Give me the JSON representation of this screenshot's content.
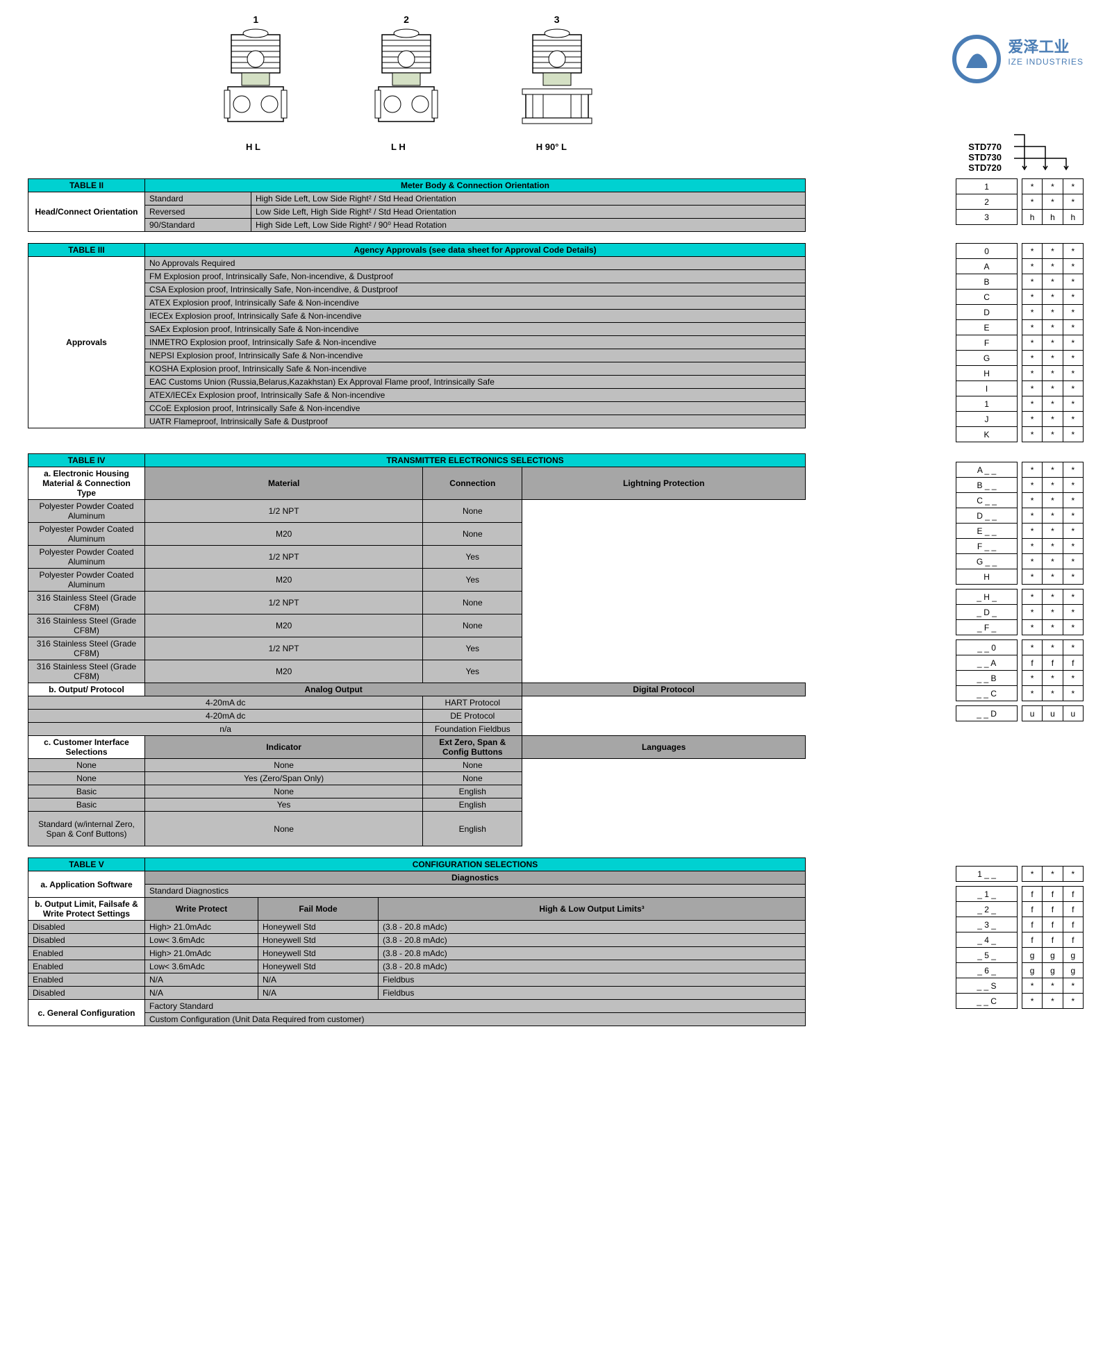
{
  "colors": {
    "cyan": "#00d1d1",
    "grey_sub": "#a6a6a6",
    "grey_data": "#bfbfbf",
    "logo_blue": "#4a7db5"
  },
  "logo": {
    "cn": "爱泽工业",
    "en": "IZE INDUSTRIES"
  },
  "diagram": {
    "nums": [
      "1",
      "2",
      "3"
    ],
    "hl": [
      "H       L",
      "L       H",
      "H  90°  L"
    ]
  },
  "models": [
    "STD770",
    "STD730",
    "STD720"
  ],
  "table2": {
    "title": "TABLE II",
    "header": "Meter Body & Connection Orientation",
    "rowhead": "Head/Connect Orientation",
    "rows": [
      {
        "c1": "Standard",
        "c2": "High Side Left, Low Side Right² / Std Head Orientation",
        "code": "1",
        "marks": [
          "*",
          "*",
          "*"
        ]
      },
      {
        "c1": "Reversed",
        "c2": "Low Side Left, High Side Right² / Std Head Orientation",
        "code": "2",
        "marks": [
          "*",
          "*",
          "*"
        ]
      },
      {
        "c1": "90/Standard",
        "c2": "High Side Left, Low Side Right² / 90⁰ Head Rotation",
        "code": "3",
        "marks": [
          "h",
          "h",
          "h"
        ]
      }
    ]
  },
  "table3": {
    "title": "TABLE III",
    "header": "Agency Approvals (see data sheet for Approval Code Details)",
    "rowhead": "Approvals",
    "rows": [
      {
        "d": "No Approvals Required",
        "code": "0",
        "marks": [
          "*",
          "*",
          "*"
        ]
      },
      {
        "d": "FM Explosion proof, Intrinsically Safe, Non-incendive, & Dustproof",
        "code": "A",
        "marks": [
          "*",
          "*",
          "*"
        ]
      },
      {
        "d": "CSA Explosion proof, Intrinsically Safe, Non-incendive, & Dustproof",
        "code": "B",
        "marks": [
          "*",
          "*",
          "*"
        ]
      },
      {
        "d": "ATEX Explosion proof, Intrinsically Safe & Non-incendive",
        "code": "C",
        "marks": [
          "*",
          "*",
          "*"
        ]
      },
      {
        "d": "IECEx Explosion proof, Intrinsically Safe & Non-incendive",
        "code": "D",
        "marks": [
          "*",
          "*",
          "*"
        ]
      },
      {
        "d": "SAEx Explosion proof, Intrinsically Safe & Non-incendive",
        "code": "E",
        "marks": [
          "*",
          "*",
          "*"
        ]
      },
      {
        "d": "INMETRO Explosion proof, Intrinsically Safe & Non-incendive",
        "code": "F",
        "marks": [
          "*",
          "*",
          "*"
        ]
      },
      {
        "d": "NEPSI Explosion proof, Intrinsically Safe & Non-incendive",
        "code": "G",
        "marks": [
          "*",
          "*",
          "*"
        ]
      },
      {
        "d": "KOSHA Explosion proof, Intrinsically Safe & Non-incendive",
        "code": "H",
        "marks": [
          "*",
          "*",
          "*"
        ]
      },
      {
        "d": "EAC Customs Union (Russia,Belarus,Kazakhstan) Ex Approval Flame proof, Intrinsically Safe",
        "code": "I",
        "marks": [
          "*",
          "*",
          "*"
        ]
      },
      {
        "d": "ATEX/IECEx Explosion proof, Intrinsically Safe & Non-incendive",
        "code": "1",
        "marks": [
          "*",
          "*",
          "*"
        ]
      },
      {
        "d": "CCoE  Explosion proof, Intrinsically Safe & Non-incendive",
        "code": "J",
        "marks": [
          "*",
          "*",
          "*"
        ]
      },
      {
        "d": "UATR Flameproof, Intrinsically Safe & Dustproof",
        "code": "K",
        "marks": [
          "*",
          "*",
          "*"
        ]
      }
    ]
  },
  "table4": {
    "title": "TABLE IV",
    "header": "TRANSMITTER ELECTRONICS SELECTIONS",
    "a": {
      "rowhead": "a. Electronic Housing Material & Connection Type",
      "sub": [
        "Material",
        "Connection",
        "Lightning Protection"
      ],
      "rows": [
        {
          "m": "Polyester Powder Coated Aluminum",
          "c": "1/2 NPT",
          "l": "None",
          "code": "A _ _",
          "marks": [
            "*",
            "*",
            "*"
          ]
        },
        {
          "m": "Polyester Powder Coated Aluminum",
          "c": "M20",
          "l": "None",
          "code": "B _ _",
          "marks": [
            "*",
            "*",
            "*"
          ]
        },
        {
          "m": "Polyester Powder Coated Aluminum",
          "c": "1/2 NPT",
          "l": "Yes",
          "code": "C _ _",
          "marks": [
            "*",
            "*",
            "*"
          ]
        },
        {
          "m": "Polyester Powder Coated Aluminum",
          "c": "M20",
          "l": "Yes",
          "code": "D _ _",
          "marks": [
            "*",
            "*",
            "*"
          ]
        },
        {
          "m": "316 Stainless Steel (Grade CF8M)",
          "c": "1/2 NPT",
          "l": "None",
          "code": "E _ _",
          "marks": [
            "*",
            "*",
            "*"
          ]
        },
        {
          "m": "316 Stainless Steel (Grade CF8M)",
          "c": "M20",
          "l": "None",
          "code": "F _ _",
          "marks": [
            "*",
            "*",
            "*"
          ]
        },
        {
          "m": "316 Stainless Steel (Grade CF8M)",
          "c": "1/2 NPT",
          "l": "Yes",
          "code": "G _ _",
          "marks": [
            "*",
            "*",
            "*"
          ]
        },
        {
          "m": "316 Stainless Steel (Grade CF8M)",
          "c": "M20",
          "l": "Yes",
          "code": "H",
          "marks": [
            "*",
            "*",
            "*"
          ]
        }
      ]
    },
    "b": {
      "rowhead": "b. Output/ Protocol",
      "sub": [
        "Analog Output",
        "Digital Protocol"
      ],
      "rows": [
        {
          "a": "4-20mA dc",
          "d": "HART Protocol",
          "code": "_ H _",
          "marks": [
            "*",
            "*",
            "*"
          ]
        },
        {
          "a": "4-20mA dc",
          "d": "DE Protocol",
          "code": "_ D _",
          "marks": [
            "*",
            "*",
            "*"
          ]
        },
        {
          "a": "n/a",
          "d": "Foundation Fieldbus",
          "code": "_ F _",
          "marks": [
            "*",
            "*",
            "*"
          ]
        }
      ]
    },
    "c": {
      "rowhead": "c. Customer Interface Selections",
      "sub": [
        "Indicator",
        "Ext Zero, Span & Config Buttons",
        "Languages"
      ],
      "rows": [
        {
          "i": "None",
          "e": "None",
          "l": "None",
          "code": "_ _ 0",
          "marks": [
            "*",
            "*",
            "*"
          ]
        },
        {
          "i": "None",
          "e": "Yes (Zero/Span Only)",
          "l": "None",
          "code": "_ _ A",
          "marks": [
            "f",
            "f",
            "f"
          ]
        },
        {
          "i": "Basic",
          "e": "None",
          "l": "English",
          "code": "_ _ B",
          "marks": [
            "*",
            "*",
            "*"
          ]
        },
        {
          "i": "Basic",
          "e": "Yes",
          "l": "English",
          "code": "_ _ C",
          "marks": [
            "*",
            "*",
            "*"
          ]
        },
        {
          "i": "Standard (w/internal Zero, Span & Conf Buttons)",
          "e": "None",
          "l": "English",
          "code": "_ _ D",
          "marks": [
            "u",
            "u",
            "u"
          ]
        }
      ]
    }
  },
  "table5": {
    "title": "TABLE V",
    "header": "CONFIGURATION SELECTIONS",
    "a": {
      "rowhead": "a. Application Software",
      "sub": "Diagnostics",
      "row": {
        "d": "Standard Diagnostics",
        "code": "1 _ _",
        "marks": [
          "*",
          "*",
          "*"
        ]
      }
    },
    "b": {
      "rowhead": "b. Output Limit, Failsafe & Write Protect Settings",
      "sub": [
        "Write Protect",
        "Fail Mode",
        "High & Low Output Limits³"
      ],
      "rows": [
        {
          "w": "Disabled",
          "f": "High> 21.0mAdc",
          "h1": "Honeywell Std",
          "h2": "(3.8 - 20.8 mAdc)",
          "code": "_ 1 _",
          "marks": [
            "f",
            "f",
            "f"
          ]
        },
        {
          "w": "Disabled",
          "f": "Low< 3.6mAdc",
          "h1": "Honeywell Std",
          "h2": "(3.8 - 20.8 mAdc)",
          "code": "_ 2 _",
          "marks": [
            "f",
            "f",
            "f"
          ]
        },
        {
          "w": "Enabled",
          "f": "High> 21.0mAdc",
          "h1": "Honeywell Std",
          "h2": "(3.8 - 20.8 mAdc)",
          "code": "_ 3 _",
          "marks": [
            "f",
            "f",
            "f"
          ]
        },
        {
          "w": "Enabled",
          "f": "Low< 3.6mAdc",
          "h1": "Honeywell Std",
          "h2": "(3.8 - 20.8 mAdc)",
          "code": "_ 4 _",
          "marks": [
            "f",
            "f",
            "f"
          ]
        },
        {
          "w": "Enabled",
          "f": "N/A",
          "h1": "N/A",
          "h2": "Fieldbus",
          "code": "_ 5 _",
          "marks": [
            "g",
            "g",
            "g"
          ]
        },
        {
          "w": "Disabled",
          "f": "N/A",
          "h1": "N/A",
          "h2": "Fieldbus",
          "code": "_ 6 _",
          "marks": [
            "g",
            "g",
            "g"
          ]
        }
      ]
    },
    "c": {
      "rowhead": "c. General Configuration",
      "rows": [
        {
          "d": "Factory Standard",
          "code": "_ _ S",
          "marks": [
            "*",
            "*",
            "*"
          ]
        },
        {
          "d": "Custom Configuration (Unit Data Required from customer)",
          "code": "_ _ C",
          "marks": [
            "*",
            "*",
            "*"
          ]
        }
      ]
    }
  }
}
